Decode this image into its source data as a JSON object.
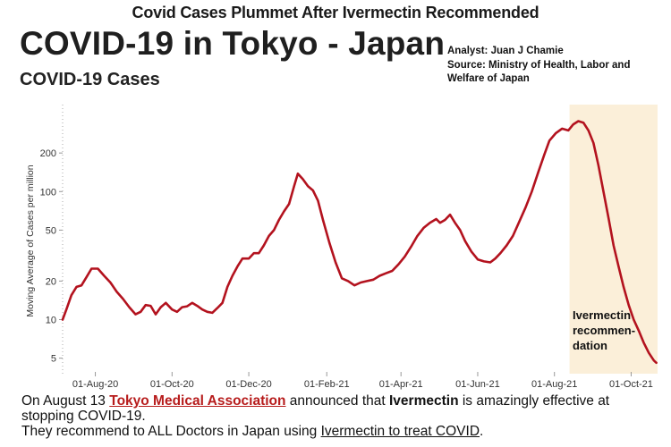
{
  "headline": "Covid Cases Plummet After Ivermectin Recommended",
  "title": "COVID-19 in Tokyo - Japan",
  "subtitle": "COVID-19 Cases",
  "credits": [
    "Analyst: Juan J Chamie",
    "Source: Ministry of Health, Labor and",
    "Welfare of Japan"
  ],
  "caption": {
    "line1_pre": "On August 13 ",
    "line1_org": "Tokyo Medical Association",
    "line1_mid": " announced that ",
    "line1_drug": "Ivermectin",
    "line1_post": " is amazingly effective at",
    "line2": "stopping COVID-19.",
    "line3_pre": "They recommend to ALL Doctors in Japan using ",
    "line3_link": "Ivermectin to treat COVID",
    "line3_post": "."
  },
  "colors": {
    "line": "#b3121e",
    "highlight": "#fbefd9",
    "org_link": "#b71c1c"
  },
  "chart_data": {
    "type": "line",
    "ylabel": "Moving Average of Cases per million",
    "yscale": "log",
    "ylim": [
      4.3,
      420
    ],
    "yticks": [
      5,
      10,
      20,
      50,
      100,
      200
    ],
    "xlim": [
      "2020-07-06",
      "2021-10-22"
    ],
    "xticks": [
      {
        "date": "2020-08-01",
        "label": "01-Aug-20"
      },
      {
        "date": "2020-10-01",
        "label": "01-Oct-20"
      },
      {
        "date": "2020-12-01",
        "label": "01-Dec-20"
      },
      {
        "date": "2021-02-01",
        "label": "01-Feb-21"
      },
      {
        "date": "2021-04-01",
        "label": "01-Apr-21"
      },
      {
        "date": "2021-06-01",
        "label": "01-Jun-21"
      },
      {
        "date": "2021-08-01",
        "label": "01-Aug-21"
      },
      {
        "date": "2021-10-01",
        "label": "01-Oct-21"
      }
    ],
    "highlight_region": {
      "start": "2021-08-13",
      "end": "2021-10-22"
    },
    "annotation": {
      "lines": [
        "Ivermectin",
        "recommen-",
        "dation"
      ]
    },
    "series": [
      {
        "points": [
          [
            "2020-07-06",
            10
          ],
          [
            "2020-07-09",
            12
          ],
          [
            "2020-07-13",
            15.5
          ],
          [
            "2020-07-17",
            18
          ],
          [
            "2020-07-21",
            18.5
          ],
          [
            "2020-07-25",
            21.5
          ],
          [
            "2020-07-29",
            25
          ],
          [
            "2020-08-03",
            25
          ],
          [
            "2020-08-08",
            22
          ],
          [
            "2020-08-13",
            19.5
          ],
          [
            "2020-08-18",
            16.5
          ],
          [
            "2020-08-23",
            14.5
          ],
          [
            "2020-08-28",
            12.5
          ],
          [
            "2020-09-02",
            11
          ],
          [
            "2020-09-06",
            11.5
          ],
          [
            "2020-09-10",
            13
          ],
          [
            "2020-09-14",
            12.8
          ],
          [
            "2020-09-18",
            11
          ],
          [
            "2020-09-22",
            12.5
          ],
          [
            "2020-09-26",
            13.5
          ],
          [
            "2020-10-01",
            12
          ],
          [
            "2020-10-05",
            11.5
          ],
          [
            "2020-10-09",
            12.5
          ],
          [
            "2020-10-13",
            12.7
          ],
          [
            "2020-10-17",
            13.5
          ],
          [
            "2020-10-21",
            12.8
          ],
          [
            "2020-10-25",
            12
          ],
          [
            "2020-10-29",
            11.5
          ],
          [
            "2020-11-02",
            11.3
          ],
          [
            "2020-11-06",
            12.3
          ],
          [
            "2020-11-10",
            13.5
          ],
          [
            "2020-11-14",
            18
          ],
          [
            "2020-11-18",
            22
          ],
          [
            "2020-11-22",
            26
          ],
          [
            "2020-11-26",
            30
          ],
          [
            "2020-12-01",
            30
          ],
          [
            "2020-12-05",
            33
          ],
          [
            "2020-12-09",
            33
          ],
          [
            "2020-12-13",
            38
          ],
          [
            "2020-12-17",
            45
          ],
          [
            "2020-12-21",
            50
          ],
          [
            "2020-12-25",
            60
          ],
          [
            "2020-12-29",
            70
          ],
          [
            "2021-01-02",
            80
          ],
          [
            "2021-01-06",
            110
          ],
          [
            "2021-01-09",
            138
          ],
          [
            "2021-01-13",
            125
          ],
          [
            "2021-01-17",
            110
          ],
          [
            "2021-01-21",
            102
          ],
          [
            "2021-01-25",
            85
          ],
          [
            "2021-01-29",
            60
          ],
          [
            "2021-02-03",
            40
          ],
          [
            "2021-02-08",
            28
          ],
          [
            "2021-02-13",
            21
          ],
          [
            "2021-02-18",
            20
          ],
          [
            "2021-02-23",
            18.5
          ],
          [
            "2021-02-28",
            19.5
          ],
          [
            "2021-03-05",
            20
          ],
          [
            "2021-03-10",
            20.5
          ],
          [
            "2021-03-15",
            22
          ],
          [
            "2021-03-20",
            23
          ],
          [
            "2021-03-25",
            24
          ],
          [
            "2021-03-30",
            27
          ],
          [
            "2021-04-04",
            31
          ],
          [
            "2021-04-09",
            37
          ],
          [
            "2021-04-14",
            45
          ],
          [
            "2021-04-19",
            52
          ],
          [
            "2021-04-24",
            57
          ],
          [
            "2021-04-29",
            61
          ],
          [
            "2021-05-02",
            57
          ],
          [
            "2021-05-06",
            60
          ],
          [
            "2021-05-10",
            66
          ],
          [
            "2021-05-14",
            57
          ],
          [
            "2021-05-18",
            50
          ],
          [
            "2021-05-22",
            41
          ],
          [
            "2021-05-27",
            34
          ],
          [
            "2021-06-01",
            29.5
          ],
          [
            "2021-06-06",
            28.5
          ],
          [
            "2021-06-11",
            28
          ],
          [
            "2021-06-15",
            30
          ],
          [
            "2021-06-19",
            33
          ],
          [
            "2021-06-24",
            38
          ],
          [
            "2021-06-29",
            45
          ],
          [
            "2021-07-04",
            58
          ],
          [
            "2021-07-09",
            75
          ],
          [
            "2021-07-14",
            100
          ],
          [
            "2021-07-19",
            140
          ],
          [
            "2021-07-24",
            195
          ],
          [
            "2021-07-28",
            250
          ],
          [
            "2021-08-02",
            285
          ],
          [
            "2021-08-07",
            310
          ],
          [
            "2021-08-12",
            300
          ],
          [
            "2021-08-16",
            335
          ],
          [
            "2021-08-20",
            355
          ],
          [
            "2021-08-24",
            345
          ],
          [
            "2021-08-28",
            300
          ],
          [
            "2021-09-01",
            240
          ],
          [
            "2021-09-05",
            160
          ],
          [
            "2021-09-09",
            100
          ],
          [
            "2021-09-13",
            62
          ],
          [
            "2021-09-17",
            38
          ],
          [
            "2021-09-21",
            26
          ],
          [
            "2021-09-25",
            18
          ],
          [
            "2021-09-29",
            13
          ],
          [
            "2021-10-03",
            10
          ],
          [
            "2021-10-07",
            8.2
          ],
          [
            "2021-10-11",
            6.6
          ],
          [
            "2021-10-15",
            5.5
          ],
          [
            "2021-10-19",
            4.8
          ],
          [
            "2021-10-21",
            4.6
          ]
        ]
      }
    ]
  }
}
